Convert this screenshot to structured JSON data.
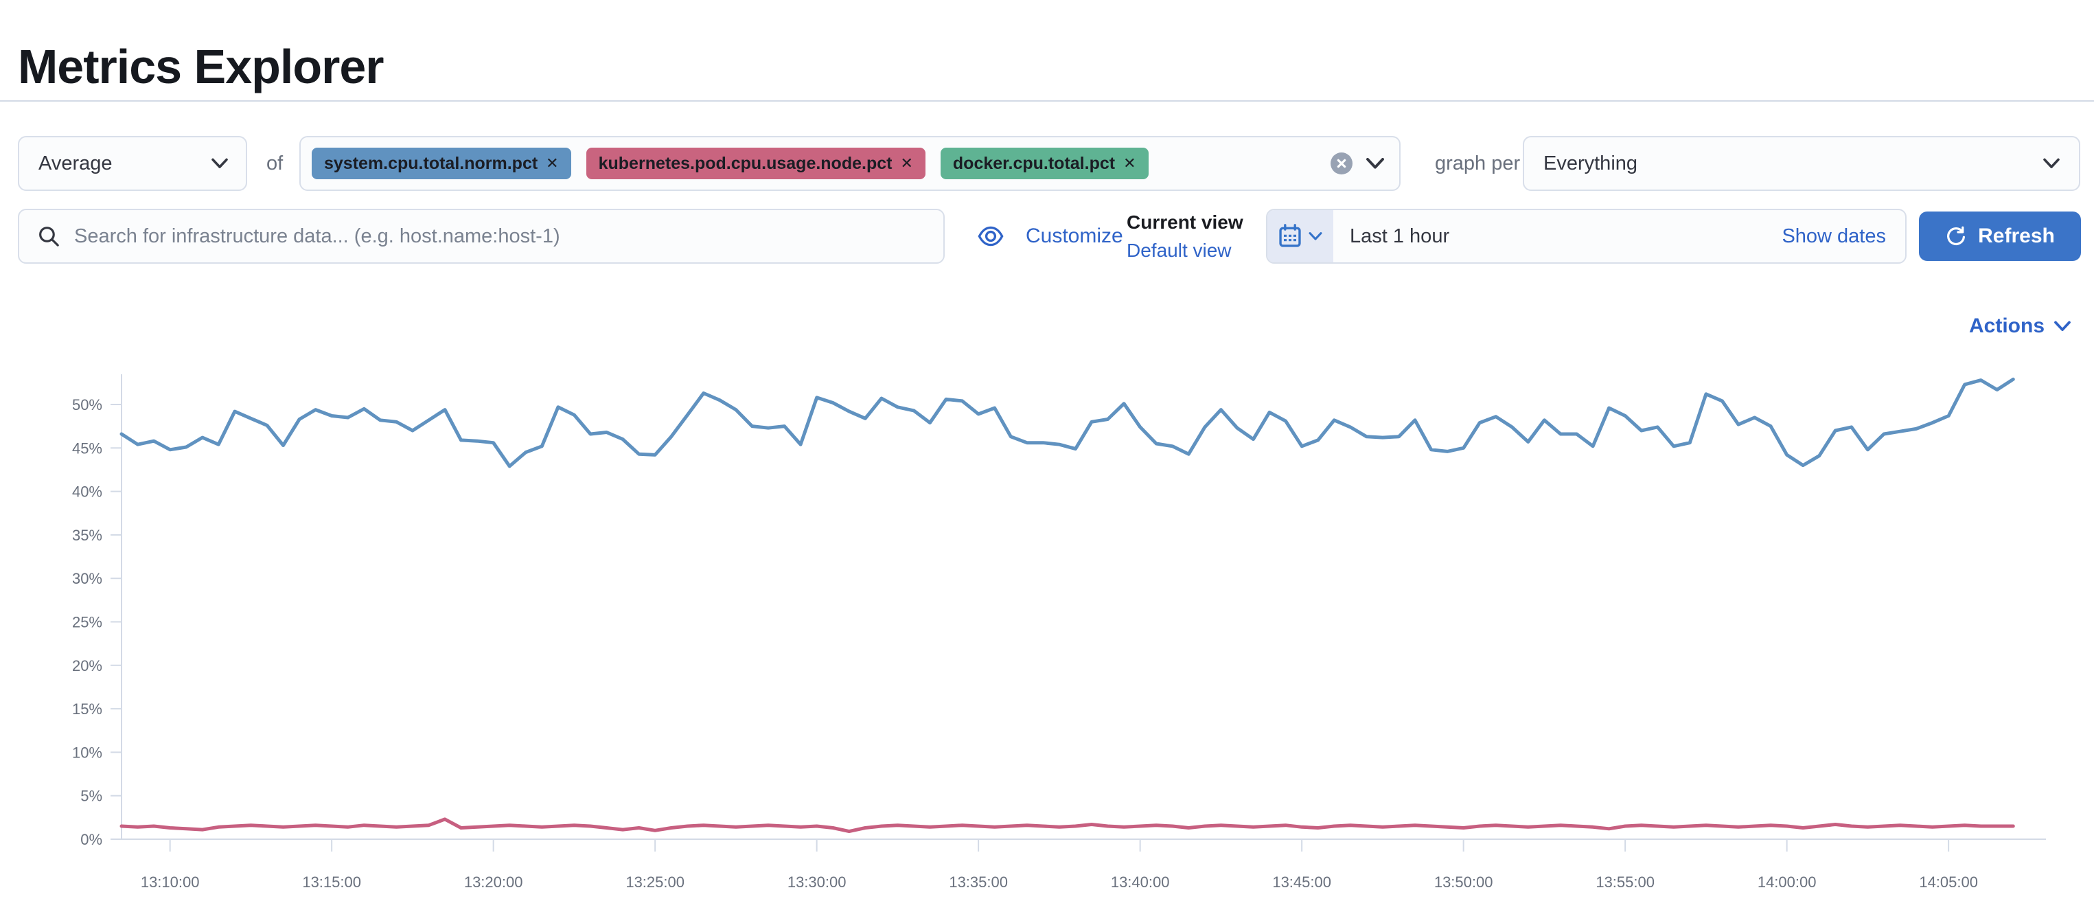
{
  "page": {
    "title": "Metrics Explorer"
  },
  "theme": {
    "link_blue": "#2f63c8",
    "primary_button_blue": "#3b74c8",
    "axis_gray": "#d3dae6",
    "label_gray": "#69707d"
  },
  "toolbar": {
    "aggregation_value": "Average",
    "of_label": "of",
    "chip_close_glyph": "✕",
    "metrics": [
      {
        "label": "system.cpu.total.norm.pct",
        "color": "#6092c0"
      },
      {
        "label": "kubernetes.pod.cpu.usage.node.pct",
        "color": "#c9647f"
      },
      {
        "label": "docker.cpu.total.pct",
        "color": "#5fb393"
      }
    ],
    "graph_per_label": "graph per",
    "group_by_value": "Everything"
  },
  "searchbar": {
    "placeholder": "Search for infrastructure data... (e.g. host.name:host-1)",
    "customize_label": "Customize",
    "current_view_label": "Current view",
    "default_view_label": "Default view",
    "timepicker_value": "Last 1 hour",
    "show_dates_label": "Show dates",
    "refresh_label": "Refresh"
  },
  "chart_header": {
    "actions_label": "Actions"
  },
  "chart_data": {
    "type": "line",
    "title": "",
    "xlabel": "",
    "ylabel": "",
    "unit": "percent",
    "x_start": "13:08:30",
    "x_interval_seconds": 30,
    "x_tick_labels": [
      "13:10:00",
      "13:15:00",
      "13:20:00",
      "13:25:00",
      "13:30:00",
      "13:35:00",
      "13:40:00",
      "13:45:00",
      "13:50:00",
      "13:55:00",
      "14:00:00",
      "14:05:00"
    ],
    "y_tick_labels": [
      "0%",
      "5%",
      "10%",
      "15%",
      "20%",
      "25%",
      "30%",
      "35%",
      "40%",
      "45%",
      "50%"
    ],
    "ylim": [
      0,
      53.5
    ],
    "grid": "ticks-only",
    "legend": "none",
    "series": [
      {
        "name": "Average system.cpu.total.norm.pct",
        "color": "#6092c0",
        "values": [
          46.6,
          45.4,
          45.8,
          44.8,
          45.1,
          46.2,
          45.4,
          49.2,
          48.4,
          47.6,
          45.3,
          48.3,
          49.4,
          48.7,
          48.5,
          49.5,
          48.2,
          48.0,
          47.0,
          48.2,
          49.4,
          45.9,
          45.8,
          45.6,
          42.9,
          44.5,
          45.2,
          49.7,
          48.8,
          46.6,
          46.8,
          46.0,
          44.3,
          44.2,
          46.3,
          48.8,
          51.3,
          50.5,
          49.4,
          47.5,
          47.3,
          47.5,
          45.4,
          50.8,
          50.2,
          49.2,
          48.4,
          50.7,
          49.7,
          49.3,
          47.9,
          50.6,
          50.4,
          48.9,
          49.6,
          46.3,
          45.6,
          45.6,
          45.4,
          44.9,
          48.0,
          48.3,
          50.1,
          47.4,
          45.5,
          45.2,
          44.3,
          47.4,
          49.4,
          47.3,
          46.0,
          49.1,
          48.1,
          45.2,
          45.9,
          48.2,
          47.4,
          46.3,
          46.2,
          46.3,
          48.2,
          44.8,
          44.6,
          45.0,
          47.9,
          48.6,
          47.4,
          45.7,
          48.2,
          46.6,
          46.6,
          45.2,
          49.6,
          48.7,
          47.0,
          47.4,
          45.2,
          45.6,
          51.2,
          50.4,
          47.7,
          48.5,
          47.5,
          44.2,
          43.0,
          44.1,
          47.0,
          47.4,
          44.8,
          46.6,
          46.9,
          47.2,
          47.9,
          48.7,
          52.3,
          52.8,
          51.7,
          52.9
        ]
      },
      {
        "name": "Average kubernetes.pod.cpu.usage.node.pct",
        "color": "#c75f80",
        "values": [
          1.5,
          1.4,
          1.5,
          1.3,
          1.2,
          1.1,
          1.4,
          1.5,
          1.6,
          1.5,
          1.4,
          1.5,
          1.6,
          1.5,
          1.4,
          1.6,
          1.5,
          1.4,
          1.5,
          1.6,
          2.3,
          1.3,
          1.4,
          1.5,
          1.6,
          1.5,
          1.4,
          1.5,
          1.6,
          1.5,
          1.3,
          1.1,
          1.3,
          1.0,
          1.3,
          1.5,
          1.6,
          1.5,
          1.4,
          1.5,
          1.6,
          1.5,
          1.4,
          1.5,
          1.3,
          0.9,
          1.3,
          1.5,
          1.6,
          1.5,
          1.4,
          1.5,
          1.6,
          1.5,
          1.4,
          1.5,
          1.6,
          1.5,
          1.4,
          1.5,
          1.7,
          1.5,
          1.4,
          1.5,
          1.6,
          1.5,
          1.3,
          1.5,
          1.6,
          1.5,
          1.4,
          1.5,
          1.6,
          1.4,
          1.3,
          1.5,
          1.6,
          1.5,
          1.4,
          1.5,
          1.6,
          1.5,
          1.4,
          1.3,
          1.5,
          1.6,
          1.5,
          1.4,
          1.5,
          1.6,
          1.5,
          1.4,
          1.2,
          1.5,
          1.6,
          1.5,
          1.4,
          1.5,
          1.6,
          1.5,
          1.4,
          1.5,
          1.6,
          1.5,
          1.3,
          1.5,
          1.7,
          1.5,
          1.4,
          1.5,
          1.6,
          1.5,
          1.4,
          1.5,
          1.6,
          1.5,
          1.5,
          1.5
        ]
      }
    ]
  }
}
